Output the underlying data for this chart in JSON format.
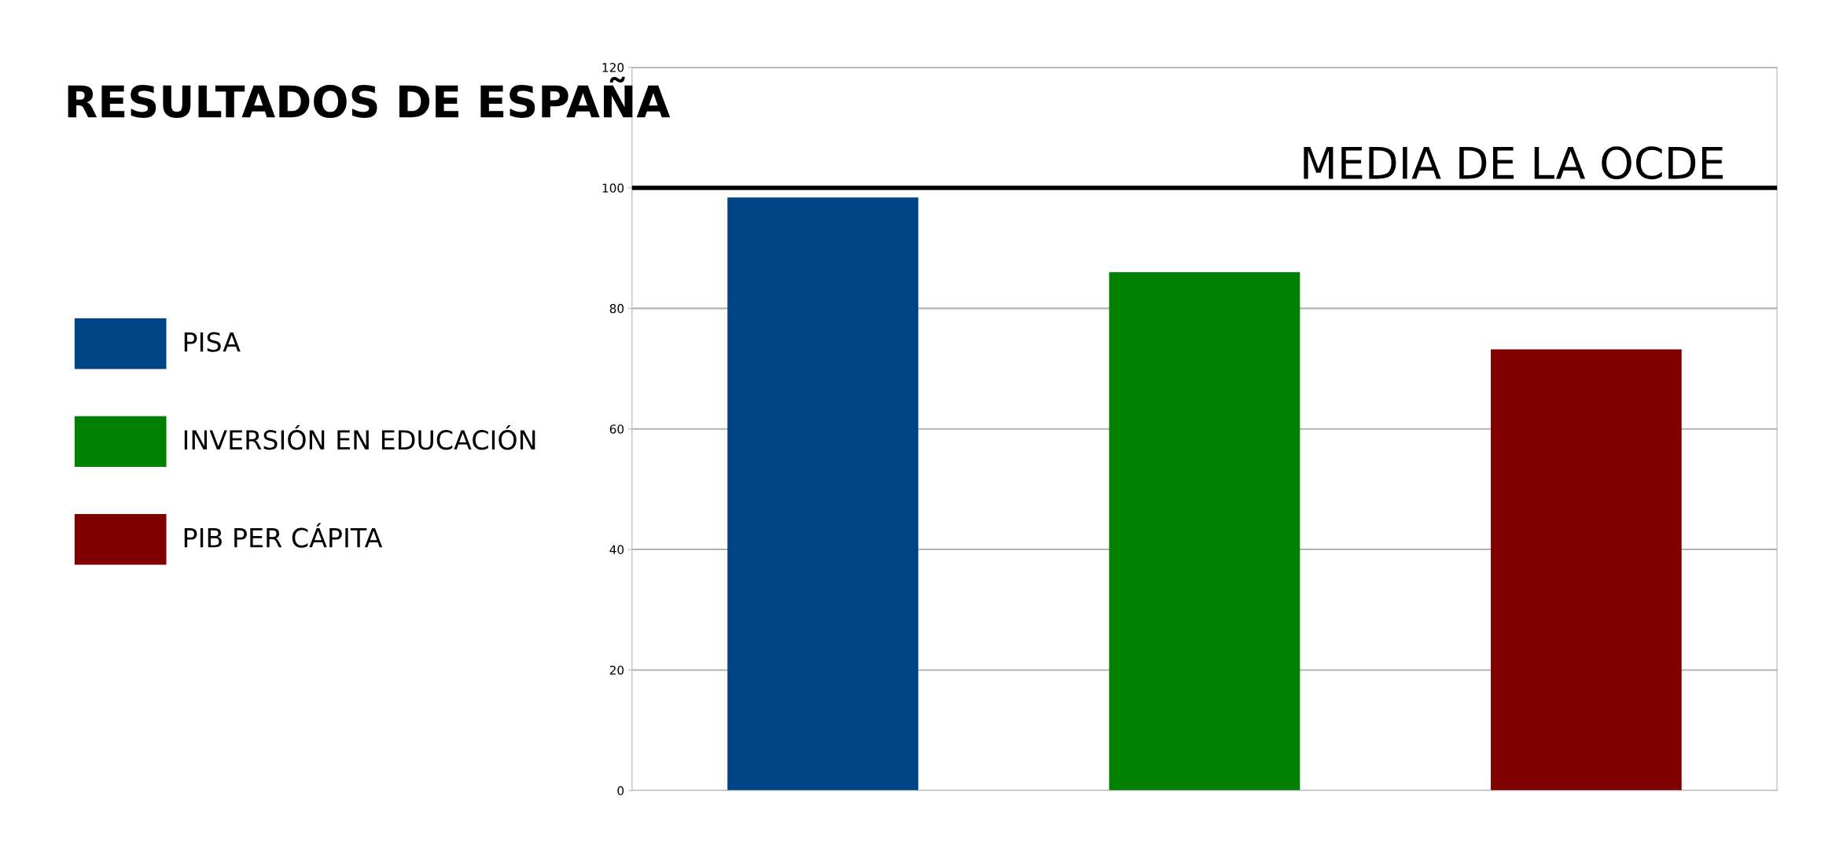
{
  "chart_data": {
    "type": "bar",
    "title": "RESULTADOS DE ESPAÑA",
    "categories": [
      null,
      null,
      null
    ],
    "series": [
      {
        "name": "PISA",
        "color": "#004586",
        "values": [
          98.4,
          null,
          null
        ]
      },
      {
        "name": "INVERSIÓN EN EDUCACIÓN",
        "color": "#008000",
        "values": [
          null,
          86.0,
          null
        ]
      },
      {
        "name": "PIB PER CÁPITA",
        "color": "#800000",
        "values": [
          null,
          null,
          73.2
        ]
      }
    ],
    "ylim": [
      0,
      120
    ],
    "yticks": [
      0,
      20,
      40,
      60,
      80,
      100,
      120
    ],
    "ref_lines": [
      {
        "axis": "y",
        "value": 100,
        "label": "MEDIA DE LA OCDE",
        "color": "#000000",
        "line_style": "solid"
      }
    ],
    "grid": "y",
    "legend": "left"
  }
}
